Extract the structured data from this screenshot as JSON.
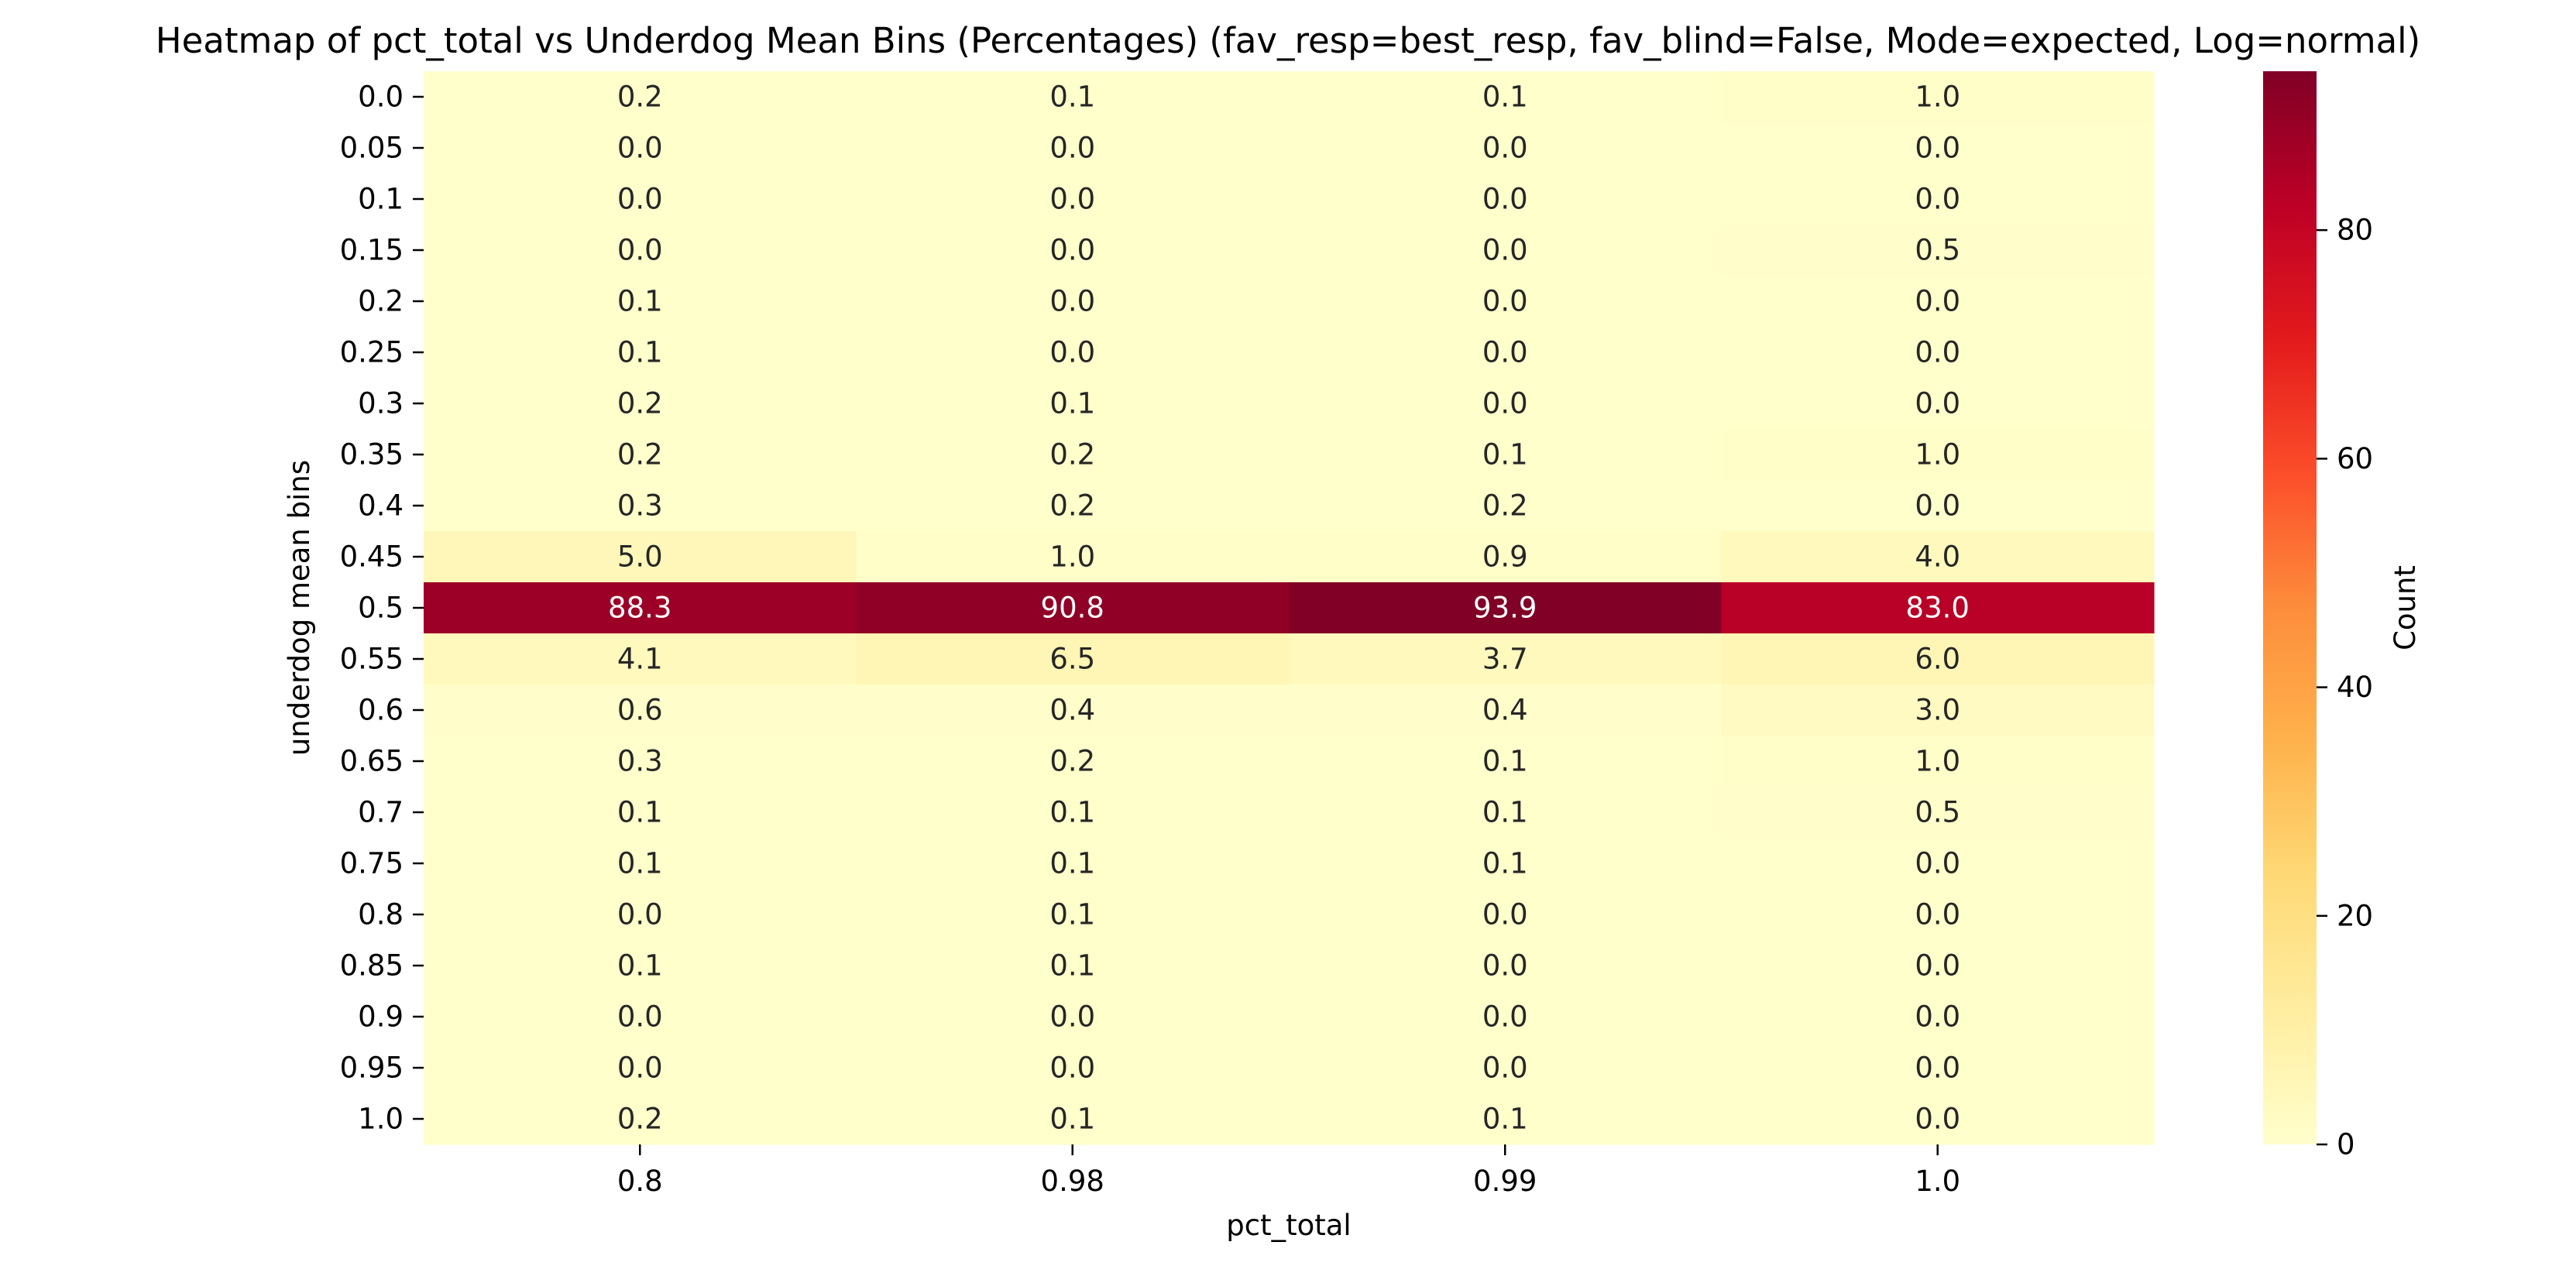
{
  "chart_data": {
    "type": "heatmap",
    "title": "Heatmap of pct_total vs Underdog Mean Bins (Percentages)  (fav_resp=best_resp, fav_blind=False, Mode=expected, Log=normal)",
    "xlabel": "pct_total",
    "ylabel": "underdog mean bins",
    "x_categories": [
      "0.8",
      "0.98",
      "0.99",
      "1.0"
    ],
    "y_categories": [
      "0.0",
      "0.05",
      "0.1",
      "0.15",
      "0.2",
      "0.25",
      "0.3",
      "0.35",
      "0.4",
      "0.45",
      "0.5",
      "0.55",
      "0.6",
      "0.65",
      "0.7",
      "0.75",
      "0.8",
      "0.85",
      "0.9",
      "0.95",
      "1.0"
    ],
    "values": [
      [
        0.2,
        0.1,
        0.1,
        1.0
      ],
      [
        0.0,
        0.0,
        0.0,
        0.0
      ],
      [
        0.0,
        0.0,
        0.0,
        0.0
      ],
      [
        0.0,
        0.0,
        0.0,
        0.5
      ],
      [
        0.1,
        0.0,
        0.0,
        0.0
      ],
      [
        0.1,
        0.0,
        0.0,
        0.0
      ],
      [
        0.2,
        0.1,
        0.0,
        0.0
      ],
      [
        0.2,
        0.2,
        0.1,
        1.0
      ],
      [
        0.3,
        0.2,
        0.2,
        0.0
      ],
      [
        5.0,
        1.0,
        0.9,
        4.0
      ],
      [
        88.3,
        90.8,
        93.9,
        83.0
      ],
      [
        4.1,
        6.5,
        3.7,
        6.0
      ],
      [
        0.6,
        0.4,
        0.4,
        3.0
      ],
      [
        0.3,
        0.2,
        0.1,
        1.0
      ],
      [
        0.1,
        0.1,
        0.1,
        0.5
      ],
      [
        0.1,
        0.1,
        0.1,
        0.0
      ],
      [
        0.0,
        0.1,
        0.0,
        0.0
      ],
      [
        0.1,
        0.1,
        0.0,
        0.0
      ],
      [
        0.0,
        0.0,
        0.0,
        0.0
      ],
      [
        0.0,
        0.0,
        0.0,
        0.0
      ],
      [
        0.2,
        0.1,
        0.1,
        0.0
      ]
    ],
    "value_format": "0.0",
    "colorbar": {
      "label": "Count",
      "ticks": [
        "0",
        "20",
        "40",
        "60",
        "80"
      ],
      "tick_values": [
        0,
        20,
        40,
        60,
        80
      ],
      "range": [
        0,
        93.9
      ],
      "colormap": "YlOrRd",
      "colors": [
        "#ffffcc",
        "#ffeda0",
        "#fed976",
        "#feb24c",
        "#fd8d3c",
        "#fc4e2a",
        "#e31a1c",
        "#bd0026",
        "#800026"
      ]
    },
    "grid": false,
    "annotation_text_colors": {
      "light_cell": "#262626",
      "dark_cell": "#ffffff"
    }
  }
}
